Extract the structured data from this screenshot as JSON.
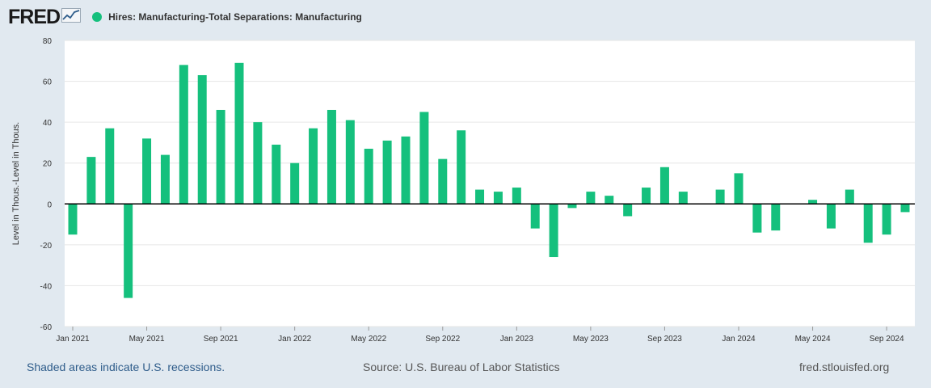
{
  "header": {
    "logo_text": "FRED",
    "logo_icon": "line-chart-icon",
    "legend_label": "Hires: Manufacturing-Total Separations: Manufacturing",
    "series_color": "#15c07d"
  },
  "footer": {
    "recession_note": "Shaded areas indicate U.S. recessions.",
    "source": "Source: U.S. Bureau of Labor Statistics",
    "site": "fred.stlouisfed.org"
  },
  "chart_data": {
    "type": "bar",
    "title": "Hires: Manufacturing-Total Separations: Manufacturing",
    "xlabel": "",
    "ylabel": "Level in Thous.-Level in Thous.",
    "ylim": [
      -60,
      80
    ],
    "yticks": [
      80,
      60,
      40,
      20,
      0,
      -20,
      -40,
      -60
    ],
    "xtick_labels": [
      "Jan 2021",
      "May 2021",
      "Sep 2021",
      "Jan 2022",
      "May 2022",
      "Sep 2022",
      "Jan 2023",
      "May 2023",
      "Sep 2023",
      "Jan 2024",
      "May 2024",
      "Sep 2024"
    ],
    "grid": true,
    "categories": [
      "2021-01",
      "2021-02",
      "2021-03",
      "2021-04",
      "2021-05",
      "2021-06",
      "2021-07",
      "2021-08",
      "2021-09",
      "2021-10",
      "2021-11",
      "2021-12",
      "2022-01",
      "2022-02",
      "2022-03",
      "2022-04",
      "2022-05",
      "2022-06",
      "2022-07",
      "2022-08",
      "2022-09",
      "2022-10",
      "2022-11",
      "2022-12",
      "2023-01",
      "2023-02",
      "2023-03",
      "2023-04",
      "2023-05",
      "2023-06",
      "2023-07",
      "2023-08",
      "2023-09",
      "2023-10",
      "2023-11",
      "2023-12",
      "2024-01",
      "2024-02",
      "2024-03",
      "2024-04",
      "2024-05",
      "2024-06",
      "2024-07",
      "2024-08",
      "2024-09",
      "2024-10"
    ],
    "series": [
      {
        "name": "Hires: Manufacturing-Total Separations: Manufacturing",
        "values": [
          -15,
          23,
          37,
          -46,
          32,
          24,
          68,
          63,
          46,
          69,
          40,
          29,
          20,
          37,
          46,
          41,
          27,
          31,
          33,
          45,
          22,
          36,
          7,
          6,
          8,
          -12,
          -26,
          -2,
          6,
          4,
          -6,
          8,
          18,
          6,
          0,
          7,
          15,
          -14,
          -13,
          0,
          2,
          -12,
          7,
          -19,
          -15,
          -4
        ]
      }
    ]
  }
}
